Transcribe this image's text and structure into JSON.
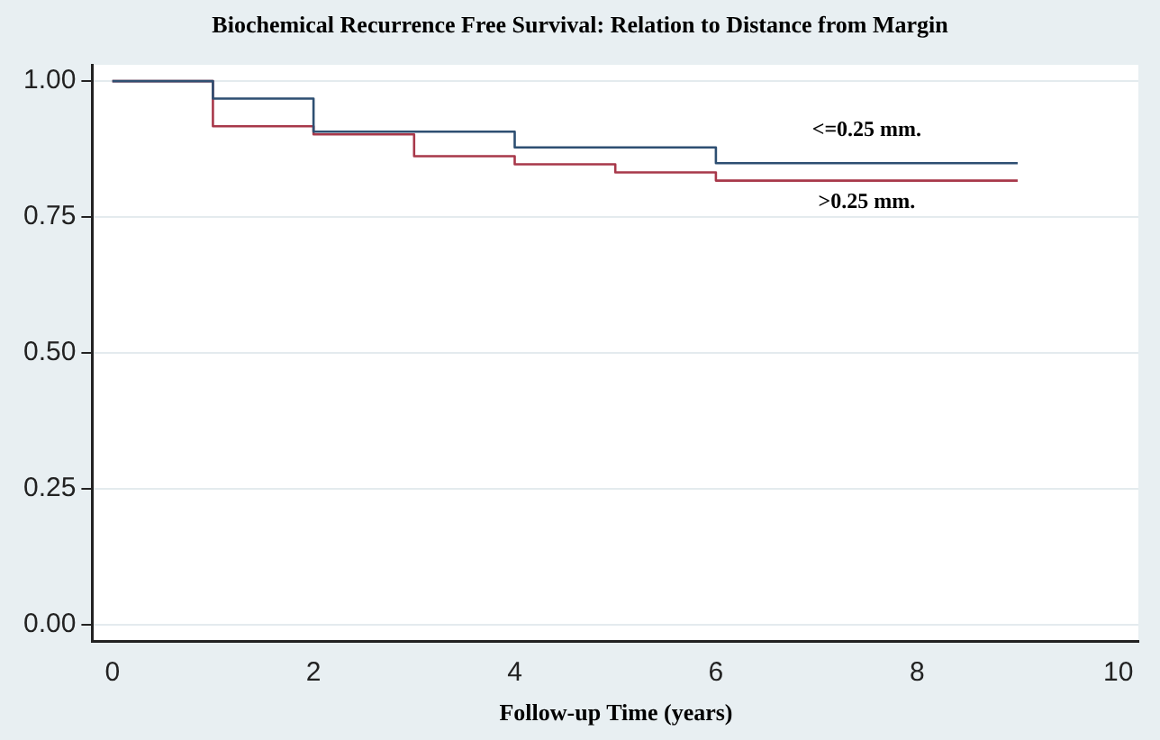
{
  "chart_data": {
    "type": "step",
    "title": "Biochemical Recurrence Free Survival: Relation to Distance from Margin",
    "xlabel": "Follow-up Time (years)",
    "xlim": [
      -0.2,
      10.2
    ],
    "xticks": [
      0,
      2,
      4,
      6,
      8,
      10
    ],
    "ylim": [
      -0.03,
      1.03
    ],
    "yticks": [
      {
        "value": 0,
        "label": "0.00"
      },
      {
        "value": 0.25,
        "label": "0.25"
      },
      {
        "value": 0.5,
        "label": "0.50"
      },
      {
        "value": 0.75,
        "label": "0.75"
      },
      {
        "value": 1,
        "label": "1.00"
      }
    ],
    "grid": "y",
    "legend": false,
    "marker": "none",
    "line_style": "solid",
    "series": [
      {
        "name": "<=0.25 mm.",
        "color": "#2e4f72",
        "x": [
          0,
          1,
          2,
          4,
          6,
          9
        ],
        "values": [
          1,
          0.968,
          0.907,
          0.878,
          0.849,
          0.849
        ]
      },
      {
        "name": ">0.25 mm.",
        "color": "#a8384a",
        "x": [
          0,
          1,
          2,
          3,
          4,
          5,
          6,
          9
        ],
        "values": [
          1,
          0.917,
          0.902,
          0.862,
          0.847,
          0.832,
          0.817,
          0.817
        ]
      }
    ]
  }
}
